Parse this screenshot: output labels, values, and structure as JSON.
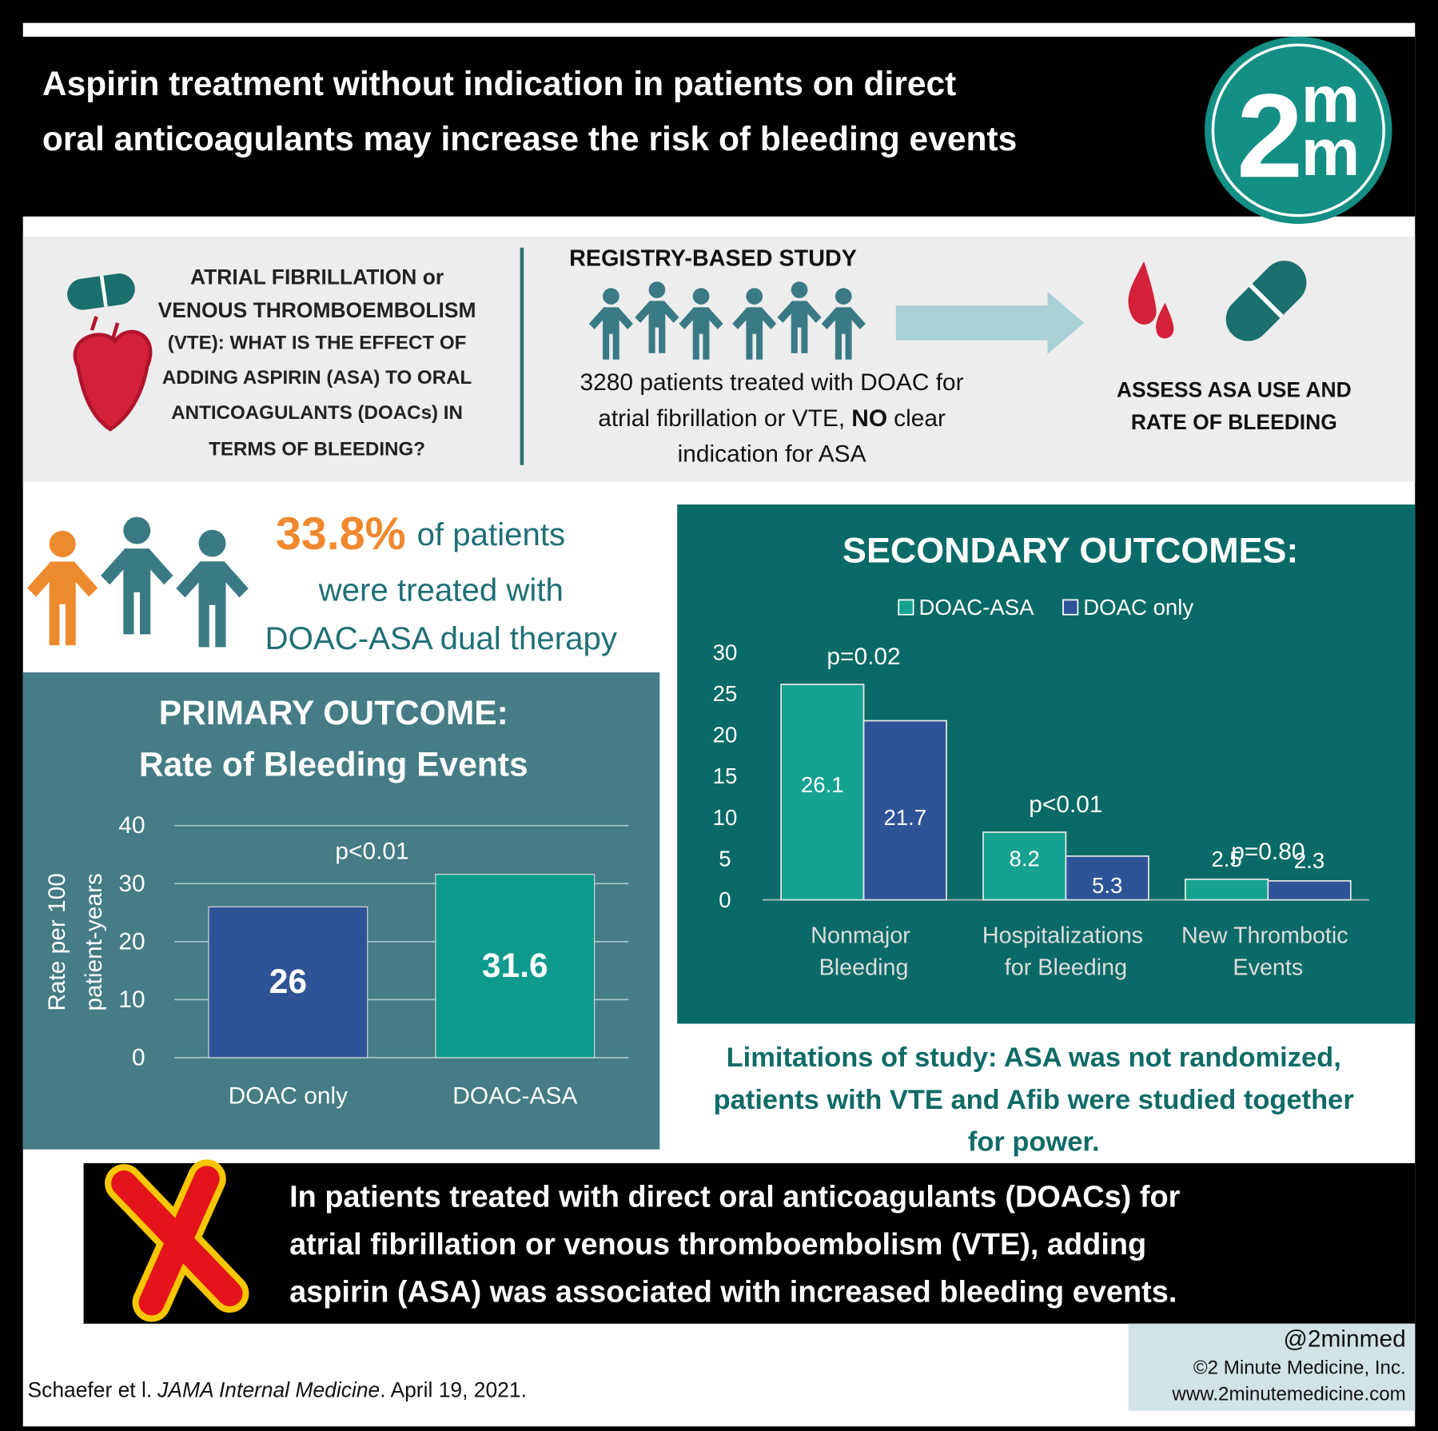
{
  "header": {
    "title_lines": [
      "Aspirin treatment without indication in patients on direct",
      "oral anticoagulants may increase the risk of bleeding events"
    ],
    "logo": {
      "digit": "2",
      "letters": [
        "m",
        "m"
      ]
    }
  },
  "question": {
    "lines": [
      "ATRIAL FIBRILLATION or",
      "VENOUS THROMBOEMBOLISM",
      "(VTE): WHAT IS THE EFFECT OF",
      "ADDING ASPIRIN (ASA) TO ORAL",
      "ANTICOAGULANTS (DOACs) IN",
      "TERMS OF BLEEDING?"
    ]
  },
  "study": {
    "heading": "REGISTRY-BASED STUDY",
    "line1": "3280 patients treated with DOAC for",
    "line2": {
      "before": "atrial fibrillation or VTE,",
      "emphasis": "NO",
      "after": "clear"
    },
    "line3": "indication for ASA"
  },
  "assess": {
    "lines": [
      "ASSESS ASA USE AND",
      "RATE OF BLEEDING"
    ]
  },
  "prevalence": {
    "figure": "33.8%",
    "lines": [
      "of patients",
      "were treated with",
      "DOAC-ASA dual therapy"
    ]
  },
  "chart_data": [
    {
      "type": "bar",
      "title": "PRIMARY OUTCOME:",
      "subtitle": "Rate of Bleeding Events",
      "y_label_lines": [
        "Rate per 100",
        "patient-years"
      ],
      "categories": [
        "DOAC only",
        "DOAC-ASA"
      ],
      "values": [
        26,
        31.6
      ],
      "colors": [
        "#2e5397",
        "#0e9a8c"
      ],
      "annotation": "p<0.01",
      "ylim": [
        0,
        40
      ],
      "yticks": [
        0,
        10,
        20,
        30,
        40
      ],
      "grid": true
    },
    {
      "type": "grouped_bar",
      "title": "SECONDARY OUTCOMES:",
      "categories": [
        "Nonmajor Bleeding",
        "Hospitalizations for Bleeding",
        "New Thrombotic Events"
      ],
      "series": [
        {
          "name": "DOAC-ASA",
          "color": "#15a291",
          "values": [
            26.1,
            8.2,
            2.5
          ]
        },
        {
          "name": "DOAC only",
          "color": "#2e5397",
          "values": [
            21.7,
            5.3,
            2.3
          ]
        }
      ],
      "annotations": [
        "p=0.02",
        "p<0.01",
        "p=0.80"
      ],
      "ylim": [
        0,
        30
      ],
      "yticks": [
        0,
        5,
        10,
        15,
        20,
        25,
        30
      ],
      "grid": false
    }
  ],
  "limitations": {
    "lines": [
      "Limitations of study: ASA was not randomized,",
      "patients with VTE and Afib were studied together",
      "for power."
    ]
  },
  "conclusion": {
    "lines": [
      "In patients treated with direct oral anticoagulants (DOACs) for",
      "atrial fibrillation or venous thromboembolism (VTE), adding",
      "aspirin (ASA) was associated with increased bleeding events."
    ]
  },
  "footer": {
    "handle": "@2minmed",
    "copyright": "©2 Minute Medicine, Inc.",
    "website": "www.2minutemedicine.com"
  },
  "citation": {
    "authors": "Schaefer et l.",
    "journal": "JAMA Internal Medicine",
    "date": ". April 19, 2021."
  }
}
